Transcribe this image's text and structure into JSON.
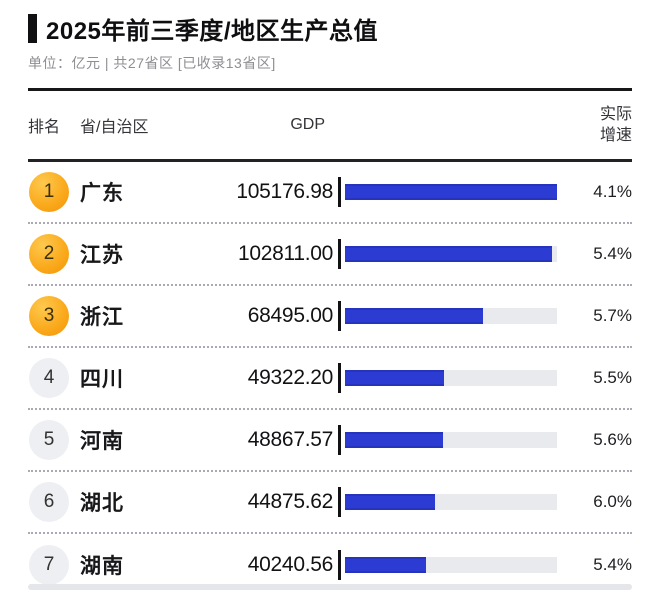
{
  "header": {
    "title": "2025年前三季度/地区生产总值",
    "subtitle": "单位：亿元 | 共27省区 [已收录13省区]"
  },
  "table": {
    "columns": {
      "rank": "排名",
      "province": "省/自治区",
      "gdp": "GDP",
      "growth_line1": "实际",
      "growth_line2": "增速"
    }
  },
  "rows": [
    {
      "rank": "1",
      "province": "广东",
      "gdp": "105176.98",
      "growth": "4.1%",
      "top3": true
    },
    {
      "rank": "2",
      "province": "江苏",
      "gdp": "102811.00",
      "growth": "5.4%",
      "top3": true
    },
    {
      "rank": "3",
      "province": "浙江",
      "gdp": "68495.00",
      "growth": "5.7%",
      "top3": true
    },
    {
      "rank": "4",
      "province": "四川",
      "gdp": "49322.20",
      "growth": "5.5%",
      "top3": false
    },
    {
      "rank": "5",
      "province": "河南",
      "gdp": "48867.57",
      "growth": "5.6%",
      "top3": false
    },
    {
      "rank": "6",
      "province": "湖北",
      "gdp": "44875.62",
      "growth": "6.0%",
      "top3": false
    },
    {
      "rank": "7",
      "province": "湖南",
      "gdp": "40240.56",
      "growth": "5.4%",
      "top3": false
    }
  ],
  "chart_data": {
    "type": "bar",
    "title": "2025年前三季度/地区生产总值",
    "subtitle": "单位：亿元 | 共27省区 [已收录13省区]",
    "unit": "亿元",
    "categories": [
      "广东",
      "江苏",
      "浙江",
      "四川",
      "河南",
      "湖北",
      "湖南"
    ],
    "series": [
      {
        "name": "GDP",
        "values": [
          105176.98,
          102811.0,
          68495.0,
          49322.2,
          48867.57,
          44875.62,
          40240.56
        ]
      },
      {
        "name": "实际增速",
        "values": [
          "4.1%",
          "5.4%",
          "5.7%",
          "5.5%",
          "5.6%",
          "6.0%",
          "5.4%"
        ]
      }
    ],
    "xlim": [
      0,
      105176.98
    ],
    "orientation": "horizontal",
    "grid": false,
    "legend": false
  },
  "colors": {
    "bar_fill": "#2c3cd2",
    "bar_track": "#e9eaee",
    "badge_top3": "#faa81a",
    "badge_rest": "#edeff2",
    "accent_bar": "#101013"
  }
}
